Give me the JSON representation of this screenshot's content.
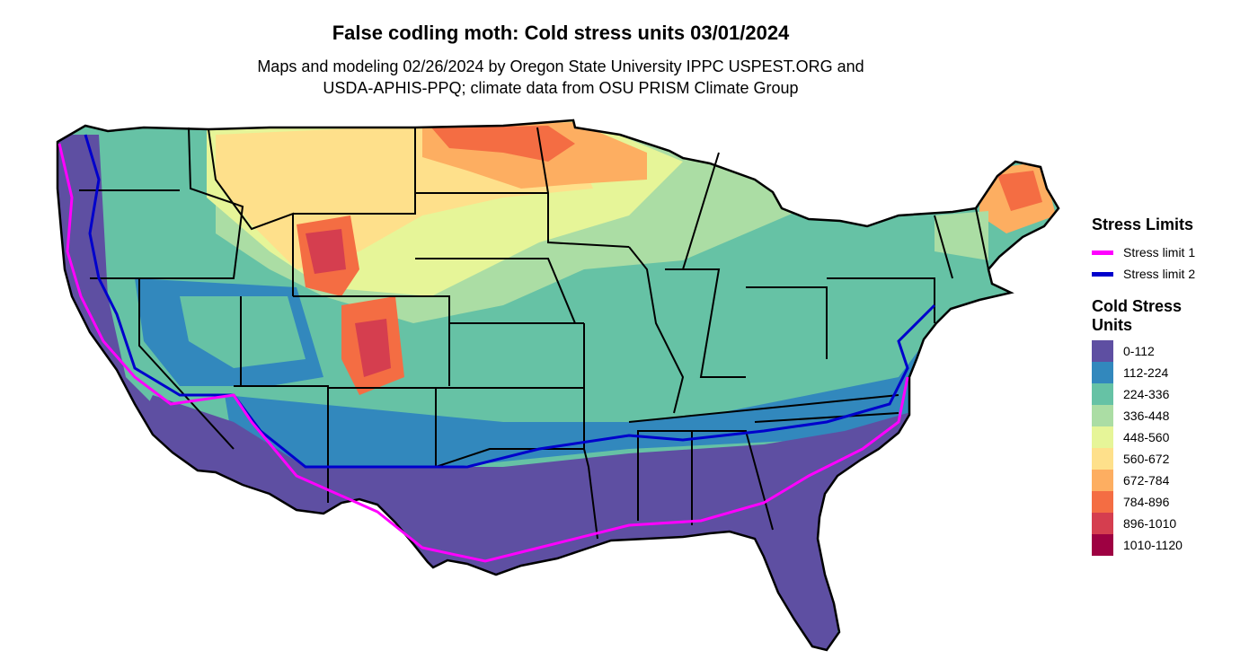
{
  "title": "False codling moth: Cold stress units 03/01/2024",
  "subtitle_line1": "Maps and modeling 02/26/2024 by Oregon State University IPPC USPEST.ORG and",
  "subtitle_line2": "USDA-APHIS-PPQ; climate data from OSU PRISM Climate Group",
  "legend_stress": {
    "title": "Stress Limits",
    "items": [
      {
        "label": "Stress limit 1",
        "color": "#ff00ff"
      },
      {
        "label": "Stress limit 2",
        "color": "#0000cc"
      }
    ]
  },
  "legend_units": {
    "title_line1": "Cold Stress",
    "title_line2": "Units",
    "items": [
      {
        "label": "0-112",
        "color": "#5e4fa2"
      },
      {
        "label": "112-224",
        "color": "#3288bd"
      },
      {
        "label": "224-336",
        "color": "#66c2a5"
      },
      {
        "label": "336-448",
        "color": "#abdda4"
      },
      {
        "label": "448-560",
        "color": "#e6f598"
      },
      {
        "label": "560-672",
        "color": "#fee08b"
      },
      {
        "label": "672-784",
        "color": "#fdae61"
      },
      {
        "label": "784-896",
        "color": "#f46d43"
      },
      {
        "label": "896-1010",
        "color": "#d53e4f"
      },
      {
        "label": "1010-1120",
        "color": "#9e0142"
      }
    ]
  }
}
